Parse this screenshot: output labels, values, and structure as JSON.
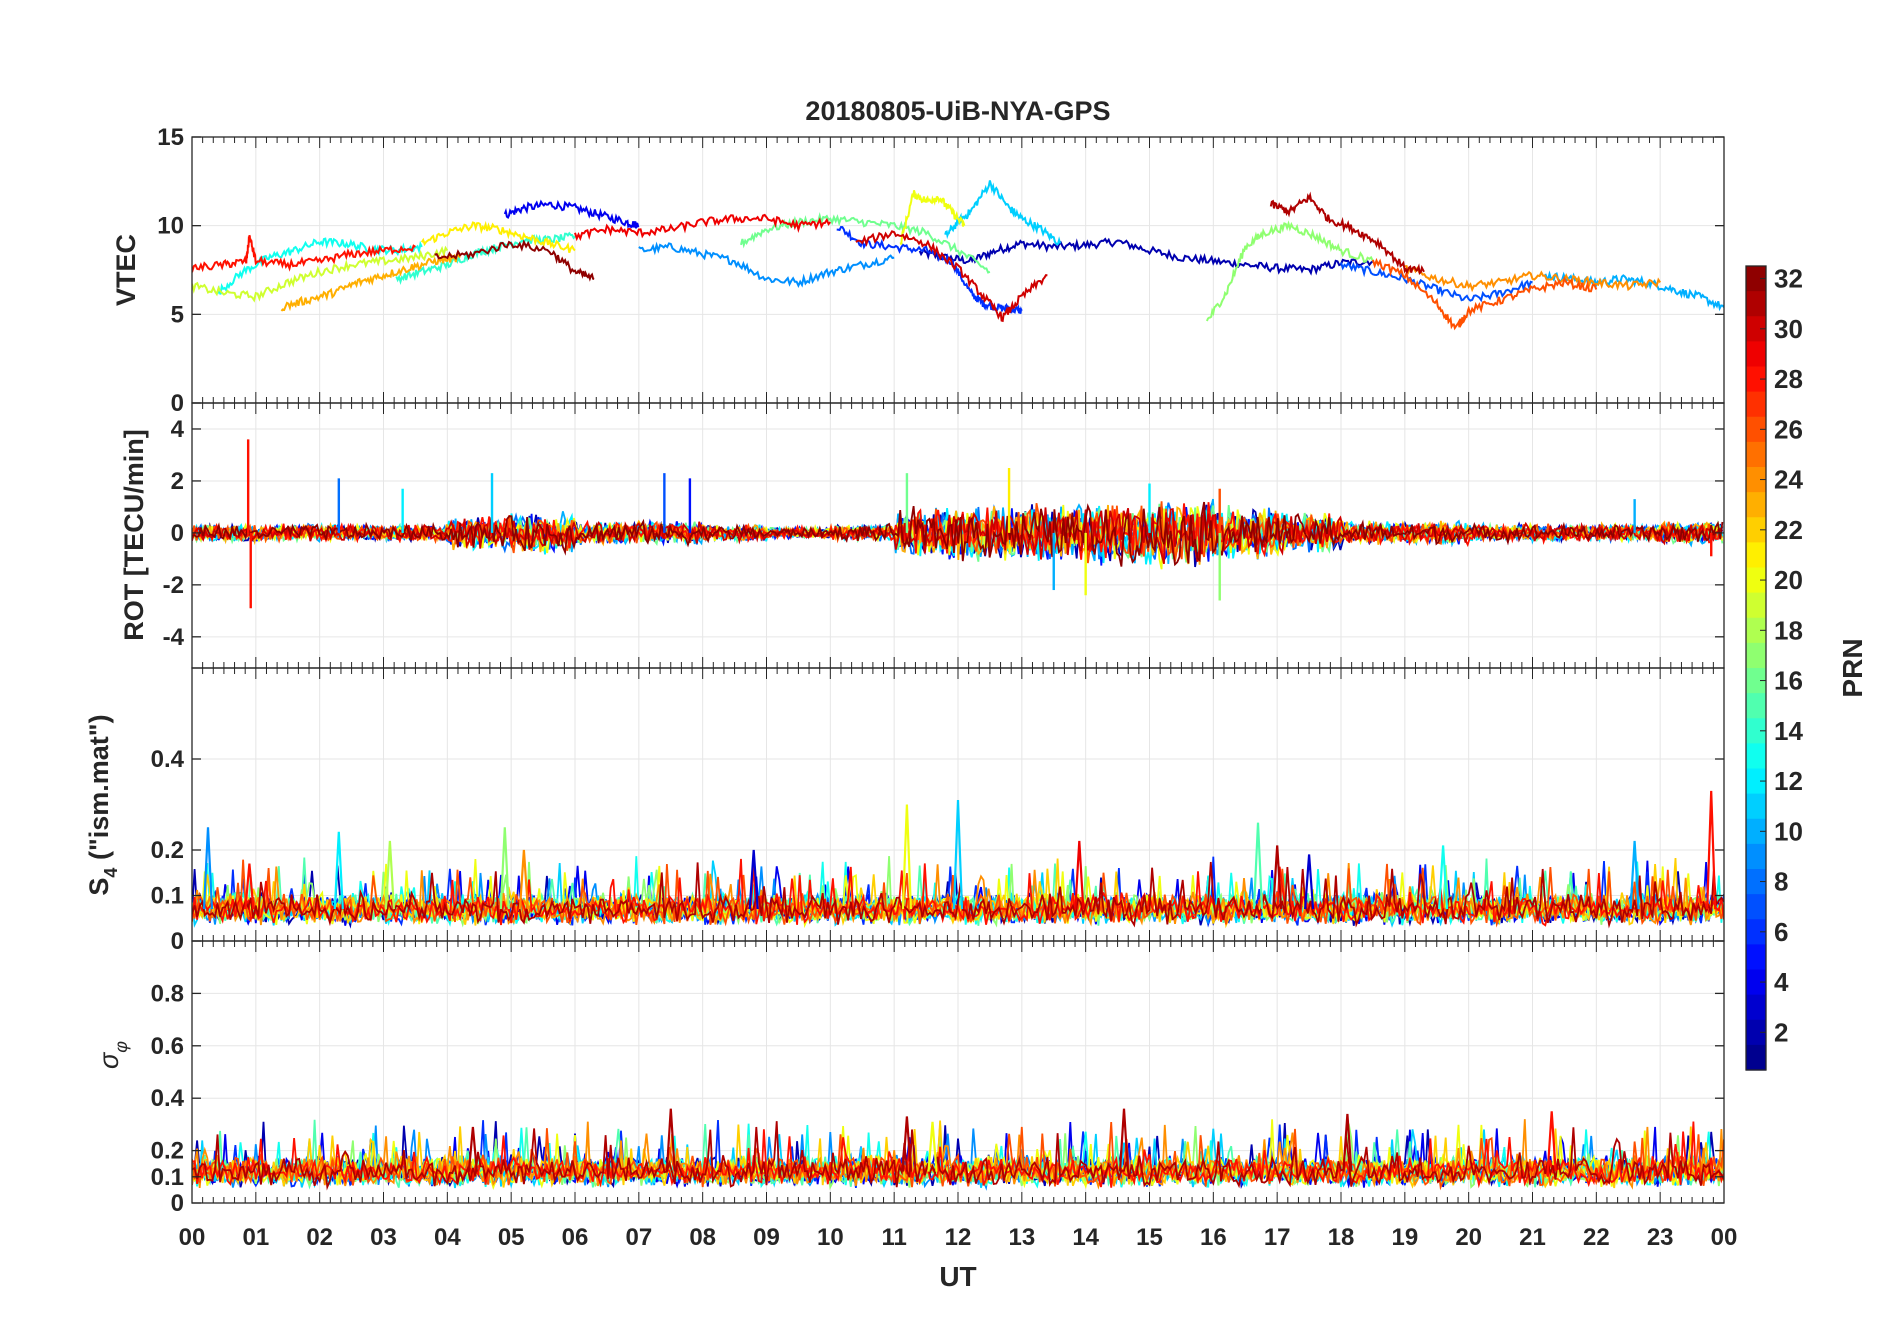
{
  "chart_data": {
    "type": "line",
    "title": "20180805-UiB-NYA-GPS",
    "xlabel": "UT",
    "x_ticks": [
      "00",
      "01",
      "02",
      "03",
      "04",
      "05",
      "06",
      "07",
      "08",
      "09",
      "10",
      "11",
      "12",
      "13",
      "14",
      "15",
      "16",
      "17",
      "18",
      "19",
      "20",
      "21",
      "22",
      "23",
      "00"
    ],
    "xlim": [
      0,
      24
    ],
    "colorbar": {
      "label": "PRN",
      "range": [
        1,
        32
      ],
      "ticks": [
        "2",
        "4",
        "6",
        "8",
        "10",
        "12",
        "14",
        "16",
        "18",
        "20",
        "22",
        "24",
        "26",
        "28",
        "30",
        "32"
      ],
      "colormap": "jet"
    },
    "panels": [
      {
        "ylabel": "VTEC",
        "ylim": [
          0,
          15
        ],
        "y_ticks": [
          "0",
          "5",
          "10",
          "15"
        ],
        "series": [
          {
            "prn": 2,
            "x": [
              11.4,
              11.8,
              12.2,
              12.6,
              13.0,
              13.5,
              14.0,
              14.5,
              15.0,
              15.5,
              16.0,
              16.5,
              17.0,
              17.5,
              18.0,
              18.5
            ],
            "y": [
              8.5,
              8.2,
              8.0,
              8.6,
              9.0,
              8.8,
              8.9,
              9.1,
              8.6,
              8.2,
              8.0,
              7.8,
              7.6,
              7.5,
              7.9,
              8.0
            ]
          },
          {
            "prn": 4,
            "x": [
              4.9,
              5.2,
              5.6,
              6.0,
              6.4,
              6.8,
              7.0
            ],
            "y": [
              10.6,
              11.0,
              11.2,
              11.0,
              10.6,
              10.2,
              10.0
            ]
          },
          {
            "prn": 6,
            "x": [
              10.1,
              10.5,
              11.0,
              11.5,
              11.9,
              12.2,
              12.4,
              12.6,
              12.8,
              13.0
            ],
            "y": [
              10.0,
              9.0,
              8.8,
              8.6,
              8.0,
              6.2,
              5.6,
              5.4,
              5.3,
              5.2
            ]
          },
          {
            "prn": 7,
            "x": [
              18.0,
              18.5,
              19.0,
              19.5,
              20.0,
              20.5,
              21.0
            ],
            "y": [
              7.8,
              7.4,
              7.0,
              6.4,
              5.8,
              6.2,
              6.8
            ]
          },
          {
            "prn": 9,
            "x": [
              7.0,
              7.5,
              8.0,
              8.5,
              9.0,
              9.5,
              10.0,
              10.5,
              11.0
            ],
            "y": [
              8.6,
              8.8,
              8.4,
              8.0,
              7.0,
              6.8,
              7.4,
              7.8,
              8.2
            ]
          },
          {
            "prn": 10,
            "x": [
              21.2,
              21.6,
              22.0,
              22.4,
              22.8,
              23.2,
              23.6,
              24.0
            ],
            "y": [
              7.2,
              7.0,
              6.8,
              7.0,
              6.8,
              6.4,
              6.0,
              5.4
            ]
          },
          {
            "prn": 11,
            "x": [
              11.8,
              12.0,
              12.2,
              12.5,
              12.8,
              13.0,
              13.3,
              13.6
            ],
            "y": [
              9.4,
              10.2,
              10.8,
              12.4,
              11.0,
              10.4,
              9.8,
              9.0
            ]
          },
          {
            "prn": 13,
            "x": [
              0.4,
              0.8,
              1.2,
              1.6,
              2.0,
              2.4,
              2.8,
              3.2,
              3.6
            ],
            "y": [
              6.2,
              7.4,
              8.2,
              8.6,
              9.1,
              9.0,
              8.7,
              8.6,
              8.8
            ]
          },
          {
            "prn": 14,
            "x": [
              3.2,
              3.6,
              4.0,
              4.4,
              4.8,
              5.2,
              5.6,
              6.0
            ],
            "y": [
              7.0,
              7.4,
              7.8,
              8.4,
              8.8,
              9.2,
              9.2,
              9.4
            ]
          },
          {
            "prn": 16,
            "x": [
              8.6,
              9.0,
              9.5,
              10.0,
              10.5,
              11.0,
              11.5,
              12.0,
              12.5
            ],
            "y": [
              9.0,
              9.8,
              10.2,
              10.4,
              10.2,
              10.0,
              9.6,
              8.6,
              7.4
            ]
          },
          {
            "prn": 17,
            "x": [
              15.9,
              16.2,
              16.5,
              16.8,
              17.2,
              17.6,
              18.0,
              18.5
            ],
            "y": [
              4.6,
              6.2,
              8.8,
              9.6,
              10.0,
              9.4,
              8.6,
              8.0
            ]
          },
          {
            "prn": 19,
            "x": [
              0.0,
              0.5,
              1.0,
              1.5,
              2.0,
              2.5,
              3.0,
              3.5,
              4.0
            ],
            "y": [
              6.6,
              6.2,
              6.0,
              6.8,
              7.4,
              7.8,
              8.0,
              8.2,
              8.6
            ]
          },
          {
            "prn": 20,
            "x": [
              11.1,
              11.3,
              11.5,
              11.7,
              11.9,
              12.1
            ],
            "y": [
              9.0,
              11.8,
              11.4,
              11.6,
              10.8,
              10.0
            ]
          },
          {
            "prn": 21,
            "x": [
              3.6,
              4.0,
              4.4,
              4.8,
              5.2,
              5.6,
              6.0
            ],
            "y": [
              9.0,
              9.6,
              10.0,
              9.8,
              9.4,
              9.0,
              8.6
            ]
          },
          {
            "prn": 23,
            "x": [
              1.4,
              1.8,
              2.2,
              2.6,
              3.0,
              3.4,
              3.8,
              4.2
            ],
            "y": [
              5.4,
              5.8,
              6.2,
              6.8,
              7.2,
              7.6,
              8.0,
              8.2
            ]
          },
          {
            "prn": 24,
            "x": [
              19.0,
              19.5,
              20.0,
              20.5,
              21.0,
              21.5,
              22.0,
              22.5,
              23.0
            ],
            "y": [
              7.6,
              7.0,
              6.6,
              6.8,
              7.2,
              7.0,
              6.8,
              6.6,
              6.8
            ]
          },
          {
            "prn": 26,
            "x": [
              18.5,
              19.0,
              19.5,
              19.8,
              20.0,
              20.5,
              21.0,
              21.5,
              22.0
            ],
            "y": [
              8.0,
              7.2,
              5.6,
              4.2,
              5.2,
              5.8,
              6.4,
              6.8,
              6.4
            ]
          },
          {
            "prn": 28,
            "x": [
              0.0,
              0.5,
              0.85,
              0.9,
              1.0,
              1.5,
              2.0,
              2.5,
              3.0,
              3.5
            ],
            "y": [
              7.6,
              7.8,
              8.0,
              9.4,
              8.0,
              7.8,
              8.0,
              8.4,
              8.6,
              8.8
            ]
          },
          {
            "prn": 29,
            "x": [
              6.0,
              6.5,
              7.0,
              7.5,
              8.0,
              8.5,
              9.0,
              9.5,
              10.0
            ],
            "y": [
              9.4,
              9.8,
              9.6,
              9.8,
              10.2,
              10.4,
              10.4,
              10.0,
              10.2
            ]
          },
          {
            "prn": 30,
            "x": [
              10.4,
              11.0,
              11.5,
              12.0,
              12.4,
              12.7,
              13.0,
              13.4
            ],
            "y": [
              9.0,
              9.6,
              9.0,
              7.6,
              6.0,
              4.8,
              6.0,
              7.2
            ]
          },
          {
            "prn": 31,
            "x": [
              16.9,
              17.2,
              17.5,
              17.8,
              18.2,
              18.6,
              19.0,
              19.3
            ],
            "y": [
              11.2,
              10.8,
              11.6,
              10.4,
              9.8,
              9.0,
              7.6,
              7.4
            ]
          },
          {
            "prn": 32,
            "x": [
              3.8,
              4.4,
              5.0,
              5.6,
              6.0,
              6.3
            ],
            "y": [
              8.2,
              8.4,
              9.0,
              8.6,
              7.4,
              7.0
            ]
          }
        ]
      },
      {
        "ylabel": "ROT [TECU/min]",
        "ylim": [
          -5.2,
          5
        ],
        "y_ticks": [
          "4",
          "2",
          "0",
          "-2",
          "-4"
        ],
        "noise_amplitude": [
          0.3,
          0.3,
          0.3,
          0.3,
          0.6,
          0.7,
          0.4,
          0.4,
          0.3,
          0.2,
          0.3,
          0.9,
          1.0,
          1.0,
          1.1,
          1.2,
          0.9,
          0.7,
          0.4,
          0.4,
          0.3,
          0.3,
          0.3,
          0.4,
          0.4
        ],
        "spikes": [
          {
            "x": 0.88,
            "y": 3.6,
            "prn": 28
          },
          {
            "x": 0.92,
            "y": -2.9,
            "prn": 28
          },
          {
            "x": 2.3,
            "y": 2.1,
            "prn": 8
          },
          {
            "x": 3.3,
            "y": 1.7,
            "prn": 12
          },
          {
            "x": 4.7,
            "y": 2.3,
            "prn": 11
          },
          {
            "x": 7.4,
            "y": 2.3,
            "prn": 7
          },
          {
            "x": 7.8,
            "y": 2.1,
            "prn": 5
          },
          {
            "x": 11.2,
            "y": 2.3,
            "prn": 16
          },
          {
            "x": 12.8,
            "y": 2.5,
            "prn": 21
          },
          {
            "x": 13.5,
            "y": -2.2,
            "prn": 10
          },
          {
            "x": 14.0,
            "y": -2.4,
            "prn": 20
          },
          {
            "x": 15.0,
            "y": 1.9,
            "prn": 12
          },
          {
            "x": 16.1,
            "y": -2.6,
            "prn": 17
          },
          {
            "x": 16.1,
            "y": 1.7,
            "prn": 26
          },
          {
            "x": 22.6,
            "y": 1.3,
            "prn": 10
          },
          {
            "x": 23.8,
            "y": -0.9,
            "prn": 28
          }
        ]
      },
      {
        "ylabel": "S4 (\"ism.mat\")",
        "ylabel_main": "S",
        "ylabel_sub": "4",
        "ylabel_rest": " (\"ism.mat\")",
        "ylim": [
          0,
          0.6
        ],
        "y_ticks": [
          "0",
          "0.1",
          "0.2",
          "0.4"
        ],
        "baseline": 0.07,
        "spikes": [
          {
            "x": 0.25,
            "y": 0.25,
            "prn": 9
          },
          {
            "x": 0.9,
            "y": 0.17,
            "prn": 28
          },
          {
            "x": 2.3,
            "y": 0.24,
            "prn": 12
          },
          {
            "x": 3.1,
            "y": 0.22,
            "prn": 18
          },
          {
            "x": 4.9,
            "y": 0.25,
            "prn": 17
          },
          {
            "x": 5.2,
            "y": 0.2,
            "prn": 24
          },
          {
            "x": 8.8,
            "y": 0.2,
            "prn": 3
          },
          {
            "x": 11.2,
            "y": 0.3,
            "prn": 20
          },
          {
            "x": 12.0,
            "y": 0.31,
            "prn": 11
          },
          {
            "x": 13.9,
            "y": 0.22,
            "prn": 29
          },
          {
            "x": 16.7,
            "y": 0.26,
            "prn": 15
          },
          {
            "x": 17.0,
            "y": 0.21,
            "prn": 31
          },
          {
            "x": 17.5,
            "y": 0.19,
            "prn": 3
          },
          {
            "x": 19.6,
            "y": 0.21,
            "prn": 13
          },
          {
            "x": 22.6,
            "y": 0.22,
            "prn": 10
          },
          {
            "x": 23.8,
            "y": 0.33,
            "prn": 28
          }
        ]
      },
      {
        "ylabel": "σφ",
        "ylabel_main": "σ",
        "ylabel_sub": "φ",
        "ylim": [
          0,
          1
        ],
        "y_ticks": [
          "0",
          "0.1",
          "0.2",
          "0.4",
          "0.6",
          "0.8"
        ],
        "baseline": 0.12,
        "spikes": [
          {
            "x": 4.4,
            "y": 0.29,
            "prn": 31
          },
          {
            "x": 7.5,
            "y": 0.36,
            "prn": 31
          },
          {
            "x": 11.2,
            "y": 0.33,
            "prn": 31
          },
          {
            "x": 11.6,
            "y": 0.31,
            "prn": 20
          },
          {
            "x": 14.6,
            "y": 0.36,
            "prn": 31
          },
          {
            "x": 18.1,
            "y": 0.34,
            "prn": 31
          },
          {
            "x": 21.3,
            "y": 0.35,
            "prn": 28
          }
        ]
      }
    ]
  }
}
